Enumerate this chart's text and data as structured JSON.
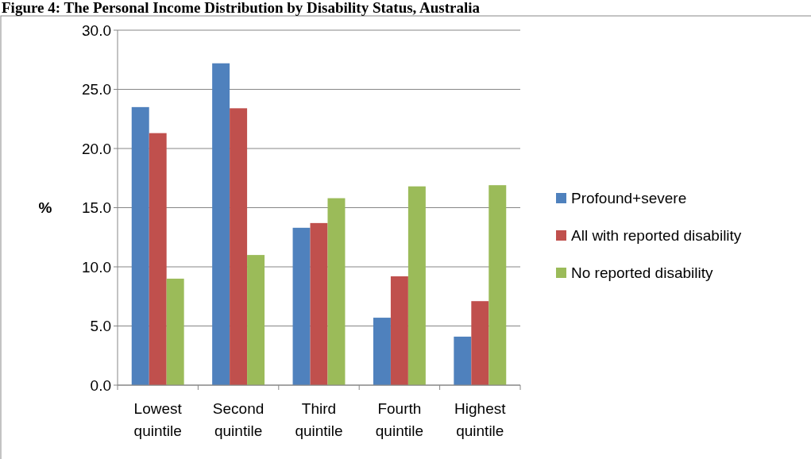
{
  "chart_data": {
    "type": "bar",
    "title": "Figure 4: The Personal Income Distribution by Disability Status, Australia",
    "ylabel": "%",
    "categories": [
      "Lowest quintile",
      "Second quintile",
      "Third quintile",
      "Fourth quintile",
      "Highest quintile"
    ],
    "series": [
      {
        "name": "Profound+severe",
        "color": "#4f81bd",
        "values": [
          23.5,
          27.2,
          13.3,
          5.7,
          4.1
        ]
      },
      {
        "name": "All with reported disability",
        "color": "#c0504d",
        "values": [
          21.3,
          23.4,
          13.7,
          9.2,
          7.1
        ]
      },
      {
        "name": "No reported disability",
        "color": "#9bbb59",
        "values": [
          9.0,
          11.0,
          15.8,
          16.8,
          16.9
        ]
      }
    ],
    "ylim": [
      0,
      30
    ],
    "yticks": [
      {
        "value": 0,
        "label": "0.0"
      },
      {
        "value": 5,
        "label": "5.0"
      },
      {
        "value": 10,
        "label": "10.0"
      },
      {
        "value": 15,
        "label": "15.0"
      },
      {
        "value": 20,
        "label": "20.0"
      },
      {
        "value": 25,
        "label": "25.0"
      },
      {
        "value": 30,
        "label": "30.0"
      }
    ],
    "grid": "y",
    "legend": "right"
  }
}
